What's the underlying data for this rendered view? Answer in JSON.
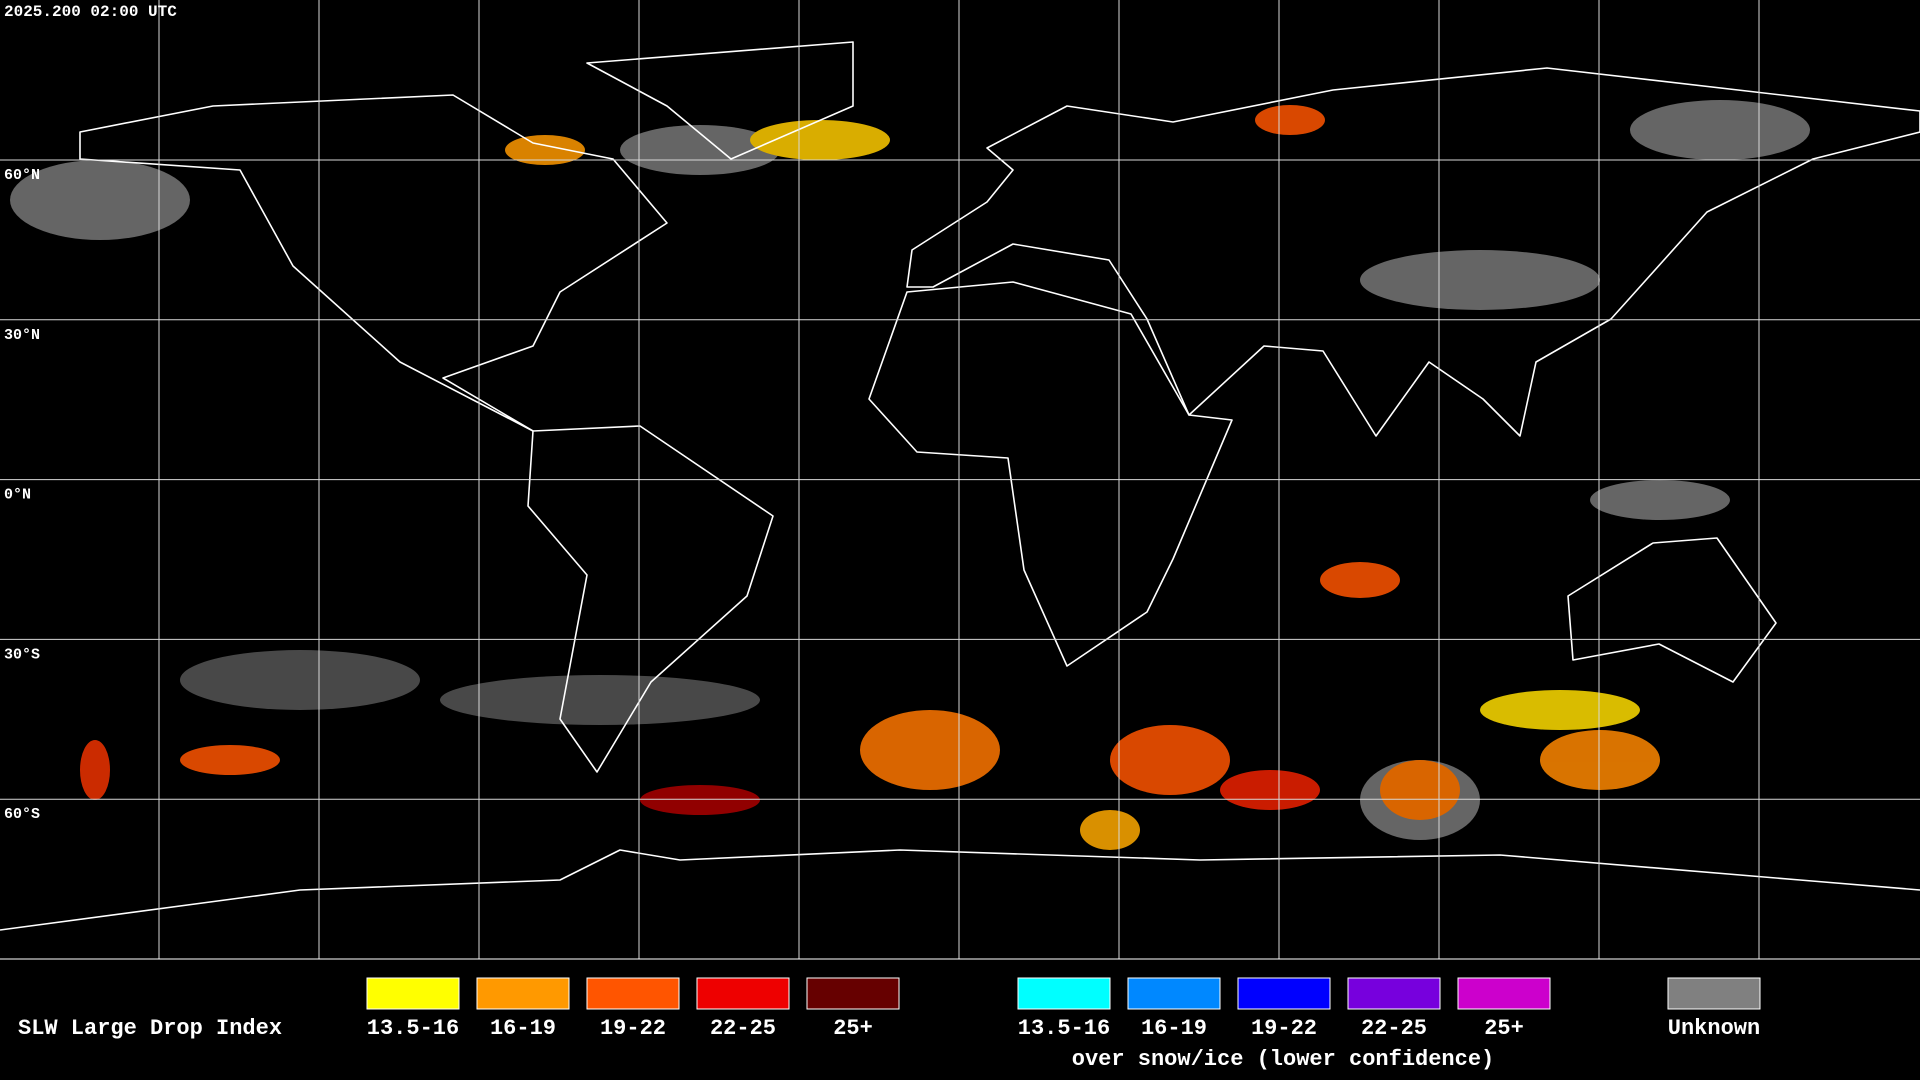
{
  "timestamp": "2025.200 02:00 UTC",
  "lat_labels": [
    "60°N",
    "30°N",
    "0°N",
    "30°S",
    "60°S"
  ],
  "legend": {
    "title": "SLW Large Drop Index",
    "items": [
      {
        "label": "13.5-16",
        "color": "#ffff00"
      },
      {
        "label": "16-19",
        "color": "#ff9900"
      },
      {
        "label": "19-22",
        "color": "#ff5500"
      },
      {
        "label": "22-25",
        "color": "#ee0000"
      },
      {
        "label": "25+",
        "color": "#660000"
      }
    ],
    "snow_items": [
      {
        "label": "13.5-16",
        "color": "#00ffff"
      },
      {
        "label": "16-19",
        "color": "#0088ff"
      },
      {
        "label": "19-22",
        "color": "#0000ff"
      },
      {
        "label": "22-25",
        "color": "#7700dd"
      },
      {
        "label": "25+",
        "color": "#cc00cc"
      }
    ],
    "snow_caption": "over snow/ice (lower confidence)",
    "unknown": {
      "label": "Unknown",
      "color": "#808080"
    }
  }
}
